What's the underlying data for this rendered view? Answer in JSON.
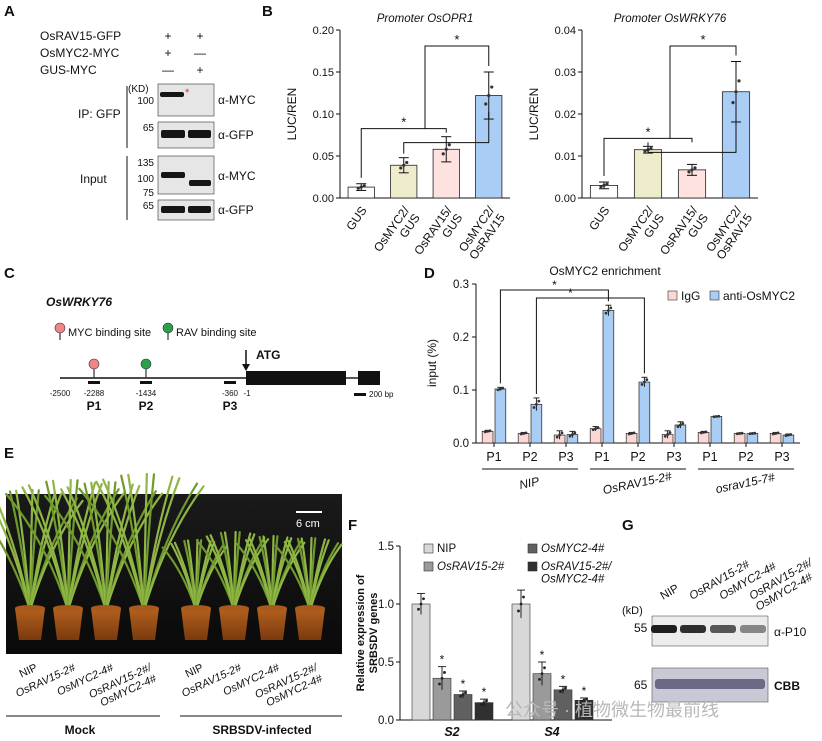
{
  "panel_labels": {
    "A": "A",
    "B": "B",
    "C": "C",
    "D": "D",
    "E": "E",
    "F": "F",
    "G": "G"
  },
  "panelA": {
    "rows": [
      {
        "label": "OsRAV15-GFP",
        "lane1": "+",
        "lane2": "+"
      },
      {
        "label": "OsMYC2-MYC",
        "lane1": "+",
        "lane2": "—"
      },
      {
        "label": "GUS-MYC",
        "lane1": "—",
        "lane2": "+"
      }
    ],
    "kd": "(KD)",
    "ip_label": "IP: GFP",
    "input_label": "Input",
    "ip_markers": [
      "100",
      "65"
    ],
    "input_markers": [
      "135",
      "100",
      "75",
      "65"
    ],
    "antibodies": [
      "α-MYC",
      "α-GFP",
      "α-MYC",
      "α-GFP"
    ],
    "star": "*"
  },
  "chart_data": [
    {
      "id": "B1",
      "type": "bar",
      "title": "Promoter OsOPR1",
      "ylabel": "LUC/REN",
      "ylim": [
        0,
        0.2
      ],
      "yticks": [
        "0.00",
        "0.05",
        "0.10",
        "0.15",
        "0.20"
      ],
      "categories": [
        "GUS",
        "OsMYC2/ GUS",
        "OsRAV15/ GUS",
        "OsMYC2/ OsRAV15"
      ],
      "values": [
        0.013,
        0.039,
        0.058,
        0.122
      ],
      "errors": [
        0.004,
        0.009,
        0.015,
        0.028
      ],
      "colors": [
        "#ffffff",
        "#efeccb",
        "#fde2df",
        "#a9cdf5"
      ],
      "stars": [
        "*",
        "*"
      ]
    },
    {
      "id": "B2",
      "type": "bar",
      "title": "Promoter OsWRKY76",
      "ylabel": "LUC/REN",
      "ylim": [
        0,
        0.04
      ],
      "yticks": [
        "0.00",
        "0.01",
        "0.02",
        "0.03",
        "0.04"
      ],
      "categories": [
        "GUS",
        "OsMYC2/ GUS",
        "OsRAV15/ GUS",
        "OsMYC2/ OsRAV15"
      ],
      "values": [
        0.003,
        0.0115,
        0.0067,
        0.0253
      ],
      "errors": [
        0.0008,
        0.0008,
        0.0013,
        0.0072
      ],
      "colors": [
        "#ffffff",
        "#efeccb",
        "#fde2df",
        "#a9cdf5"
      ],
      "stars": [
        "*",
        "*"
      ]
    },
    {
      "id": "D",
      "type": "bar",
      "title": "OsMYC2 enrichment",
      "ylabel": "input (%)",
      "ylim": [
        0,
        0.3
      ],
      "yticks": [
        "0.0",
        "0.1",
        "0.2",
        "0.3"
      ],
      "categories": [
        "P1",
        "P2",
        "P3",
        "P1",
        "P2",
        "P3",
        "P1",
        "P2",
        "P3"
      ],
      "groups": [
        "NIP",
        "OsRAV15-2#",
        "osrav15-7#"
      ],
      "series": [
        {
          "name": "IgG",
          "color": "#fbd7d5",
          "values": [
            0.022,
            0.018,
            0.015,
            0.027,
            0.018,
            0.016,
            0.02,
            0.018,
            0.018
          ],
          "errors": [
            0.002,
            0.002,
            0.008,
            0.004,
            0.002,
            0.007,
            0.002,
            0.001,
            0.002
          ]
        },
        {
          "name": "anti-OsMYC2",
          "color": "#a9cdf5",
          "values": [
            0.102,
            0.073,
            0.016,
            0.25,
            0.115,
            0.034,
            0.05,
            0.018,
            0.015
          ],
          "errors": [
            0.003,
            0.012,
            0.006,
            0.01,
            0.009,
            0.006,
            0.001,
            0.001,
            0.002
          ]
        }
      ],
      "stars": [
        "*",
        "*"
      ]
    },
    {
      "id": "F",
      "type": "bar",
      "ylabel": "Relative expression of SRBSDV genes",
      "ylim": [
        0,
        1.5
      ],
      "yticks": [
        "0.0",
        "0.5",
        "1.0",
        "1.5"
      ],
      "categories": [
        "S2",
        "S4"
      ],
      "series": [
        {
          "name": "NIP",
          "color": "#d8d8d8",
          "values": [
            1.0,
            1.0
          ],
          "errors": [
            0.09,
            0.12
          ]
        },
        {
          "name": "OsRAV15-2#",
          "color": "#9a9a9a",
          "values": [
            0.36,
            0.4
          ],
          "errors": [
            0.1,
            0.1
          ]
        },
        {
          "name": "OsMYC2-4#",
          "color": "#606060",
          "values": [
            0.22,
            0.26
          ],
          "errors": [
            0.03,
            0.03
          ]
        },
        {
          "name": "OsRAV15-2#/ OsMYC2-4#",
          "color": "#303030",
          "values": [
            0.15,
            0.17
          ],
          "errors": [
            0.03,
            0.02
          ]
        }
      ],
      "stars": [
        "*",
        "*",
        "*",
        "*",
        "*",
        "*"
      ]
    }
  ],
  "panelC": {
    "gene": "OsWRKY76",
    "legend_myc": "MYC binding site",
    "legend_rav": "RAV binding site",
    "atg": "ATG",
    "positions": [
      "-2500",
      "-2288",
      "-1434",
      "-360",
      "-1"
    ],
    "probes": [
      "P1",
      "P2",
      "P3"
    ],
    "scale": "200 bp",
    "myc_color": "#f08585",
    "rav_color": "#2aa04a"
  },
  "panelE": {
    "scale": "6 cm",
    "mock_labels": [
      "NIP",
      "OsRAV15-2#",
      "OsMYC2-4#",
      "OsRAV15-2#/ OsMYC2-4#"
    ],
    "infected_labels": [
      "NIP",
      "OsRAV15-2#",
      "OsMYC2-4#",
      "OsRAV15-2#/ OsMYC2-4#"
    ],
    "mock": "Mock",
    "infected": "SRBSDV-infected"
  },
  "panelG": {
    "lanes": [
      "NIP",
      "OsRAV15-2#",
      "OsMYC2-4#",
      "OsRAV15-2#/ OsMYC2-4#"
    ],
    "kd": "(kD)",
    "marker_55": "55",
    "marker_65": "65",
    "p10": "α-P10",
    "cbb": "CBB",
    "band_intensity": [
      1.0,
      0.9,
      0.65,
      0.35
    ]
  },
  "watermark": "公众号 · 植物微生物最前线"
}
